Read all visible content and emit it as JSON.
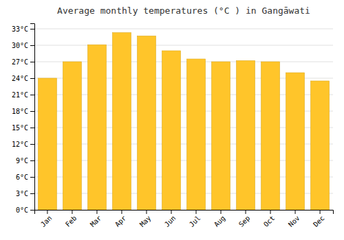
{
  "chart_data": {
    "type": "bar",
    "title": "Average monthly temperatures (°C ) in Gangāwati",
    "categories": [
      "Jan",
      "Feb",
      "Mar",
      "Apr",
      "May",
      "Jun",
      "Jul",
      "Aug",
      "Sep",
      "Oct",
      "Nov",
      "Dec"
    ],
    "values": [
      24.0,
      27.0,
      30.1,
      32.3,
      31.7,
      29.0,
      27.5,
      27.0,
      27.2,
      27.0,
      25.0,
      23.5
    ],
    "color": "#FFC52A",
    "ylim": [
      0,
      34
    ],
    "yticks": [
      {
        "value": 0,
        "label": "0°C"
      },
      {
        "value": 3,
        "label": "3°C"
      },
      {
        "value": 6,
        "label": "6°C"
      },
      {
        "value": 9,
        "label": "9°C"
      },
      {
        "value": 12,
        "label": "12°C"
      },
      {
        "value": 15,
        "label": "15°C"
      },
      {
        "value": 18,
        "label": "18°C"
      },
      {
        "value": 21,
        "label": "21°C"
      },
      {
        "value": 24,
        "label": "24°C"
      },
      {
        "value": 27,
        "label": "27°C"
      },
      {
        "value": 30,
        "label": "30°C"
      },
      {
        "value": 33,
        "label": "33°C"
      }
    ],
    "grid": true
  }
}
